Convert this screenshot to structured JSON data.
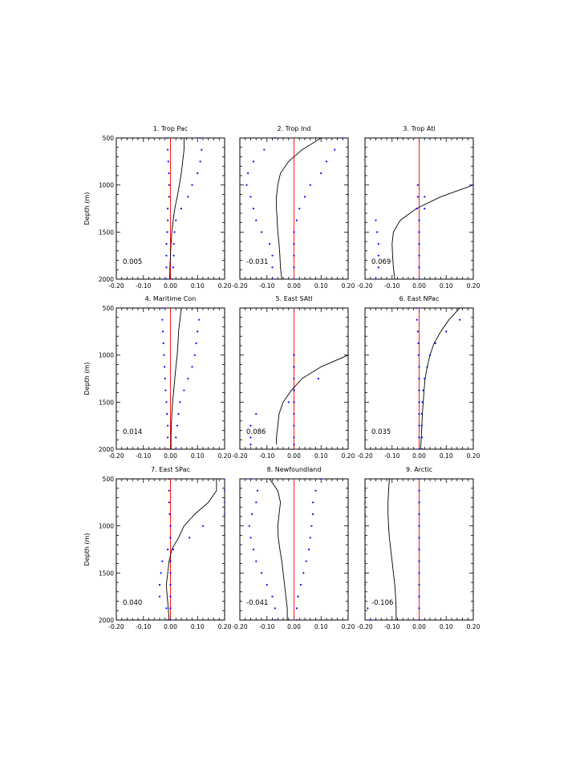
{
  "figure": {
    "y_axis_label": "Depth (m)",
    "x_ticks": [
      "-0.20",
      "-0.10",
      "0.00",
      "0.10",
      "0.20"
    ],
    "y_ticks": [
      "500",
      "1000",
      "1500",
      "2000"
    ],
    "colors": {
      "profile": "#000000",
      "spread": "#0000ff",
      "zero_line": "#ff0000"
    }
  },
  "chart_data": [
    {
      "type": "line",
      "title": "1. Trop Pac",
      "value_label": "0.005",
      "xlim": [
        -0.2,
        0.2
      ],
      "ylim": [
        2000,
        500
      ],
      "depths": [
        500,
        625,
        750,
        875,
        1000,
        1125,
        1250,
        1375,
        1500,
        1625,
        1750,
        1875,
        2000
      ],
      "series": [
        {
          "values": [
            0.05,
            0.05,
            0.045,
            0.04,
            0.033,
            0.025,
            0.016,
            0.01,
            0.005,
            0.002,
            0.0,
            -0.002,
            -0.003
          ]
        },
        {
          "values": [
            -0.01,
            -0.01,
            -0.008,
            -0.006,
            -0.005,
            -0.005,
            -0.01,
            -0.01,
            -0.012,
            -0.015,
            -0.015,
            -0.015,
            -0.015
          ]
        },
        {
          "values": [
            0.11,
            0.115,
            0.11,
            0.1,
            0.08,
            0.065,
            0.04,
            0.02,
            0.015,
            0.012,
            0.012,
            0.01,
            0.005
          ]
        }
      ]
    },
    {
      "type": "line",
      "title": "2. Trop Ind",
      "value_label": "-0.031",
      "xlim": [
        -0.2,
        0.2
      ],
      "ylim": [
        2000,
        500
      ],
      "depths": [
        500,
        625,
        750,
        875,
        1000,
        1125,
        1250,
        1375,
        1500,
        1625,
        1750,
        1875,
        2000
      ],
      "series": [
        {
          "values": [
            0.1,
            0.03,
            -0.02,
            -0.05,
            -0.06,
            -0.065,
            -0.065,
            -0.062,
            -0.06,
            -0.055,
            -0.052,
            -0.05,
            -0.045
          ]
        },
        {
          "values": [
            -0.07,
            -0.11,
            -0.15,
            -0.17,
            -0.175,
            -0.16,
            -0.15,
            -0.14,
            -0.12,
            -0.09,
            -0.08,
            -0.08,
            -0.08
          ]
        },
        {
          "values": [
            0.18,
            0.15,
            0.12,
            0.1,
            0.06,
            0.04,
            0.02,
            0.01,
            0.0,
            0.0,
            0.0,
            0.0,
            0.0
          ]
        }
      ]
    },
    {
      "type": "line",
      "title": "3. Trop Atl",
      "value_label": "0.069",
      "xlim": [
        -0.2,
        0.2
      ],
      "ylim": [
        2000,
        500
      ],
      "depths": [
        1000,
        1125,
        1250,
        1375,
        1500,
        1625,
        1750,
        1875,
        2000
      ],
      "series": [
        {
          "values": [
            0.2,
            0.08,
            -0.01,
            -0.07,
            -0.095,
            -0.1,
            -0.098,
            -0.095,
            -0.09
          ]
        },
        {
          "values": [
            -0.005,
            -0.005,
            -0.008,
            -0.16,
            -0.155,
            -0.15,
            -0.15,
            -0.15,
            -0.16
          ]
        },
        {
          "values": [
            0.2,
            0.02,
            0.02,
            0.0,
            0.0,
            0.0,
            0.0,
            0.0,
            0.0
          ]
        }
      ]
    },
    {
      "type": "line",
      "title": "4. Maritime Con",
      "value_label": "0.014",
      "xlim": [
        -0.2,
        0.2
      ],
      "ylim": [
        2000,
        500
      ],
      "depths": [
        500,
        625,
        750,
        875,
        1000,
        1125,
        1250,
        1375,
        1500,
        1625,
        1750,
        1875,
        2000
      ],
      "series": [
        {
          "values": [
            0.04,
            0.035,
            0.03,
            0.028,
            0.025,
            0.02,
            0.016,
            0.012,
            0.008,
            0.005,
            0.003,
            0.002,
            0.002
          ]
        },
        {
          "values": [
            -0.03,
            -0.03,
            -0.028,
            -0.026,
            -0.024,
            -0.022,
            -0.02,
            -0.018,
            -0.015,
            -0.013,
            -0.01,
            -0.01,
            -0.01
          ]
        },
        {
          "values": [
            0.1,
            0.105,
            0.1,
            0.095,
            0.09,
            0.08,
            0.065,
            0.05,
            0.035,
            0.03,
            0.025,
            0.02,
            0.02
          ]
        }
      ]
    },
    {
      "type": "line",
      "title": "5. East SAtl",
      "value_label": "0.086",
      "xlim": [
        -0.2,
        0.2
      ],
      "ylim": [
        2000,
        500
      ],
      "depths": [
        1000,
        1125,
        1250,
        1375,
        1500,
        1625,
        1750,
        1875,
        1950
      ],
      "series": [
        {
          "values": [
            0.2,
            0.1,
            0.03,
            -0.01,
            -0.04,
            -0.055,
            -0.06,
            -0.065,
            -0.065
          ]
        },
        {
          "values": [
            0.0,
            0.0,
            0.0,
            0.0,
            -0.02,
            -0.14,
            -0.16,
            -0.16,
            -0.16
          ]
        },
        {
          "values": [
            0.0,
            0.0,
            0.09,
            0.0,
            0.0,
            0.0,
            0.0,
            0.0,
            0.0
          ]
        }
      ]
    },
    {
      "type": "line",
      "title": "6. East NPac",
      "value_label": "0.035",
      "xlim": [
        -0.2,
        0.2
      ],
      "ylim": [
        2000,
        500
      ],
      "depths": [
        500,
        625,
        750,
        875,
        1000,
        1125,
        1250,
        1375,
        1500,
        1625,
        1750,
        1875,
        2000
      ],
      "series": [
        {
          "values": [
            0.15,
            0.11,
            0.08,
            0.055,
            0.04,
            0.03,
            0.022,
            0.018,
            0.015,
            0.012,
            0.01,
            0.008,
            0.005
          ]
        },
        {
          "values": [
            -0.01,
            -0.008,
            -0.005,
            -0.003,
            -0.002,
            0.0,
            0.0,
            0.0,
            0.0,
            0.0,
            0.0,
            0.0,
            0.0
          ]
        },
        {
          "values": [
            0.2,
            0.15,
            0.1,
            0.06,
            0.04,
            0.03,
            0.02,
            0.015,
            0.012,
            0.01,
            0.01,
            0.01,
            0.01
          ]
        }
      ]
    },
    {
      "type": "line",
      "title": "7. East SPac",
      "value_label": "0.040",
      "xlim": [
        -0.2,
        0.2
      ],
      "ylim": [
        2000,
        500
      ],
      "depths": [
        500,
        625,
        750,
        875,
        1000,
        1125,
        1250,
        1375,
        1500,
        1625,
        1750,
        1875,
        2000
      ],
      "series": [
        {
          "values": [
            0.17,
            0.17,
            0.14,
            0.09,
            0.05,
            0.03,
            0.005,
            -0.005,
            -0.01,
            -0.015,
            -0.012,
            -0.008,
            -0.005
          ]
        },
        {
          "values": [
            -0.005,
            -0.005,
            -0.005,
            -0.003,
            0.0,
            0.0,
            -0.01,
            -0.03,
            -0.035,
            -0.04,
            -0.04,
            -0.015,
            -0.01
          ]
        },
        {
          "values": [
            0.2,
            0.2,
            0.2,
            0.2,
            0.12,
            0.07,
            0.01,
            0.0,
            0.0,
            0.0,
            0.0,
            0.0,
            0.0
          ]
        }
      ]
    },
    {
      "type": "line",
      "title": "8. Newfoundland",
      "value_label": "-0.041",
      "xlim": [
        -0.2,
        0.2
      ],
      "ylim": [
        2000,
        500
      ],
      "depths": [
        500,
        625,
        750,
        875,
        1000,
        1125,
        1250,
        1375,
        1500,
        1625,
        1750,
        1875,
        2000
      ],
      "series": [
        {
          "values": [
            -0.09,
            -0.06,
            -0.05,
            -0.055,
            -0.06,
            -0.058,
            -0.052,
            -0.045,
            -0.04,
            -0.035,
            -0.03,
            -0.025,
            -0.025
          ]
        },
        {
          "values": [
            -0.16,
            -0.135,
            -0.14,
            -0.155,
            -0.165,
            -0.16,
            -0.15,
            -0.14,
            -0.12,
            -0.1,
            -0.08,
            -0.07,
            -0.07
          ]
        },
        {
          "values": [
            0.1,
            0.08,
            0.07,
            0.07,
            0.065,
            0.06,
            0.055,
            0.045,
            0.035,
            0.025,
            0.015,
            0.01,
            0.01
          ]
        }
      ]
    },
    {
      "type": "line",
      "title": "9. Arctic",
      "value_label": "-0.106",
      "xlim": [
        -0.2,
        0.2
      ],
      "ylim": [
        2000,
        500
      ],
      "depths": [
        500,
        625,
        750,
        875,
        1000,
        1125,
        1250,
        1375,
        1500,
        1625,
        1750,
        1875,
        2000
      ],
      "series": [
        {
          "values": [
            -0.11,
            -0.113,
            -0.115,
            -0.115,
            -0.113,
            -0.11,
            -0.105,
            -0.1,
            -0.095,
            -0.09,
            -0.087,
            -0.085,
            -0.085
          ]
        },
        {
          "values": [
            -0.2,
            -0.2,
            -0.2,
            -0.2,
            -0.2,
            -0.2,
            -0.2,
            -0.2,
            -0.2,
            -0.2,
            -0.2,
            -0.19,
            -0.18
          ]
        },
        {
          "values": [
            0.0,
            0.0,
            0.0,
            0.0,
            0.0,
            0.0,
            0.0,
            0.0,
            0.0,
            0.0,
            0.0,
            0.0,
            0.0
          ]
        }
      ]
    }
  ]
}
